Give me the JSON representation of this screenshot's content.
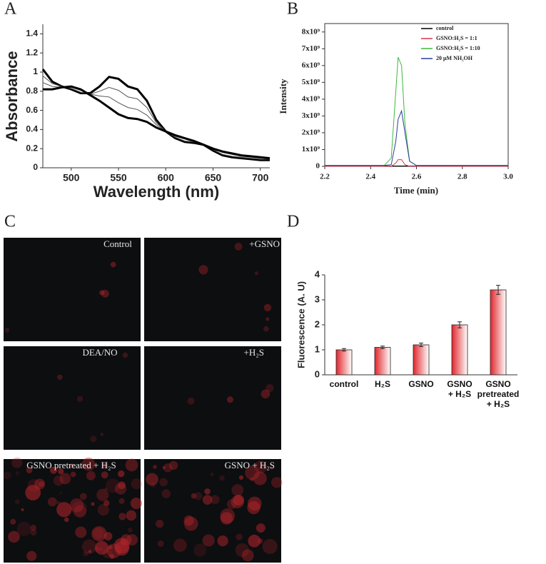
{
  "chart_data": [
    {
      "type": "line",
      "panel_label": "A",
      "xlabel": "Wavelength (nm)",
      "ylabel": "Absorbance",
      "x": [
        470,
        480,
        490,
        500,
        510,
        520,
        530,
        540,
        550,
        560,
        570,
        580,
        590,
        600,
        610,
        620,
        630,
        640,
        650,
        660,
        670,
        680,
        690,
        700,
        710
      ],
      "series": [
        {
          "color": "#000000",
          "values": [
            1.03,
            0.9,
            0.85,
            0.82,
            0.78,
            0.78,
            0.85,
            0.95,
            0.93,
            0.85,
            0.82,
            0.7,
            0.5,
            0.38,
            0.31,
            0.27,
            0.26,
            0.24,
            0.18,
            0.13,
            0.11,
            0.1,
            0.09,
            0.08,
            0.08
          ]
        },
        {
          "color": "#555555",
          "values": [
            0.96,
            0.88,
            0.85,
            0.83,
            0.79,
            0.77,
            0.8,
            0.84,
            0.81,
            0.74,
            0.72,
            0.63,
            0.47,
            0.38,
            0.32,
            0.28,
            0.27,
            0.24,
            0.19,
            0.14,
            0.12,
            0.11,
            0.1,
            0.09,
            0.09
          ]
        },
        {
          "color": "#555555",
          "values": [
            0.89,
            0.85,
            0.84,
            0.84,
            0.81,
            0.77,
            0.75,
            0.74,
            0.68,
            0.63,
            0.61,
            0.55,
            0.45,
            0.38,
            0.33,
            0.3,
            0.27,
            0.24,
            0.2,
            0.16,
            0.14,
            0.12,
            0.11,
            0.1,
            0.1
          ]
        },
        {
          "color": "#000000",
          "values": [
            0.82,
            0.82,
            0.84,
            0.85,
            0.82,
            0.76,
            0.7,
            0.63,
            0.56,
            0.52,
            0.51,
            0.48,
            0.42,
            0.38,
            0.34,
            0.31,
            0.28,
            0.24,
            0.2,
            0.17,
            0.15,
            0.13,
            0.12,
            0.11,
            0.1
          ]
        }
      ],
      "xlim": [
        470,
        710
      ],
      "xticks": [
        500,
        550,
        600,
        650,
        700
      ],
      "ylim": [
        0,
        1.5
      ],
      "yticks": [
        0,
        0.2,
        0.4,
        0.6,
        0.8,
        1,
        1.2,
        1.4
      ]
    },
    {
      "type": "line",
      "panel_label": "B",
      "xlabel": "Time (min)",
      "ylabel": "Intensity",
      "legend": "upper right",
      "x": [
        2.2,
        2.3,
        2.4,
        2.46,
        2.49,
        2.51,
        2.52,
        2.535,
        2.55,
        2.57,
        2.6,
        2.7,
        2.8,
        2.9,
        3.0
      ],
      "series": [
        {
          "name": "control",
          "color": "#000000",
          "values": [
            20000000,
            20000000,
            20000000,
            20000000,
            20000000,
            20000000,
            20000000,
            20000000,
            20000000,
            20000000,
            20000000,
            20000000,
            20000000,
            20000000,
            20000000
          ]
        },
        {
          "name": "GSNO:H₂S = 1:1",
          "color": "#d9334a",
          "values": [
            0,
            0,
            0,
            0,
            0,
            200000000,
            400000000,
            400000000,
            100000000,
            0,
            0,
            0,
            0,
            0,
            0
          ]
        },
        {
          "name": "GSNO:H₂S = 1:10",
          "color": "#3cb83c",
          "values": [
            50000000,
            50000000,
            50000000,
            50000000,
            500000000,
            4500000000,
            6500000000,
            6000000000,
            2500000000,
            300000000,
            50000000,
            50000000,
            50000000,
            50000000,
            50000000
          ]
        },
        {
          "name": "20 μM NH₂OH",
          "color": "#2b3c9c",
          "values": [
            50000000,
            50000000,
            50000000,
            50000000,
            100000000,
            1500000000,
            2800000000,
            3300000000,
            2000000000,
            300000000,
            50000000,
            50000000,
            50000000,
            50000000,
            50000000
          ]
        }
      ],
      "xlim": [
        2.2,
        3.0
      ],
      "xticks": [
        2.2,
        2.4,
        2.6,
        2.8,
        {
          "value": 3,
          "label": "3.0"
        }
      ],
      "ylim": [
        0,
        8500000000
      ],
      "yticks": [
        0,
        {
          "value": 1000000000,
          "label": "1x10⁹"
        },
        {
          "value": 2000000000,
          "label": "2x10⁹"
        },
        {
          "value": 3000000000,
          "label": "3x10⁹"
        },
        {
          "value": 4000000000,
          "label": "4x10⁹"
        },
        {
          "value": 5000000000,
          "label": "5x10⁹"
        },
        {
          "value": 6000000000,
          "label": "6x10⁹"
        },
        {
          "value": 7000000000,
          "label": "7x10⁹"
        },
        {
          "value": 8000000000,
          "label": "8x10⁹"
        }
      ]
    },
    {
      "type": "bar",
      "panel_label": "D",
      "ylabel": "Fluorescence (A. U)",
      "color": "#e0262c",
      "categories": [
        "control",
        "H₂S",
        "GSNO",
        "GSNO\n+ H₂S",
        "GSNO\npretreated\n+ H₂S"
      ],
      "values": [
        1.0,
        1.1,
        1.2,
        2.0,
        3.4
      ],
      "errors": [
        0.05,
        0.05,
        0.07,
        0.12,
        0.18
      ],
      "ylim": [
        0,
        4
      ],
      "yticks": [
        0,
        1,
        2,
        3,
        4
      ]
    }
  ],
  "micrographs": {
    "panel_label": "C",
    "captions": [
      "Control",
      "+GSNO",
      "DEA/NO",
      "+H₂S",
      "GSNO pretreated  + H₂S",
      "GSNO + H₂S"
    ]
  }
}
